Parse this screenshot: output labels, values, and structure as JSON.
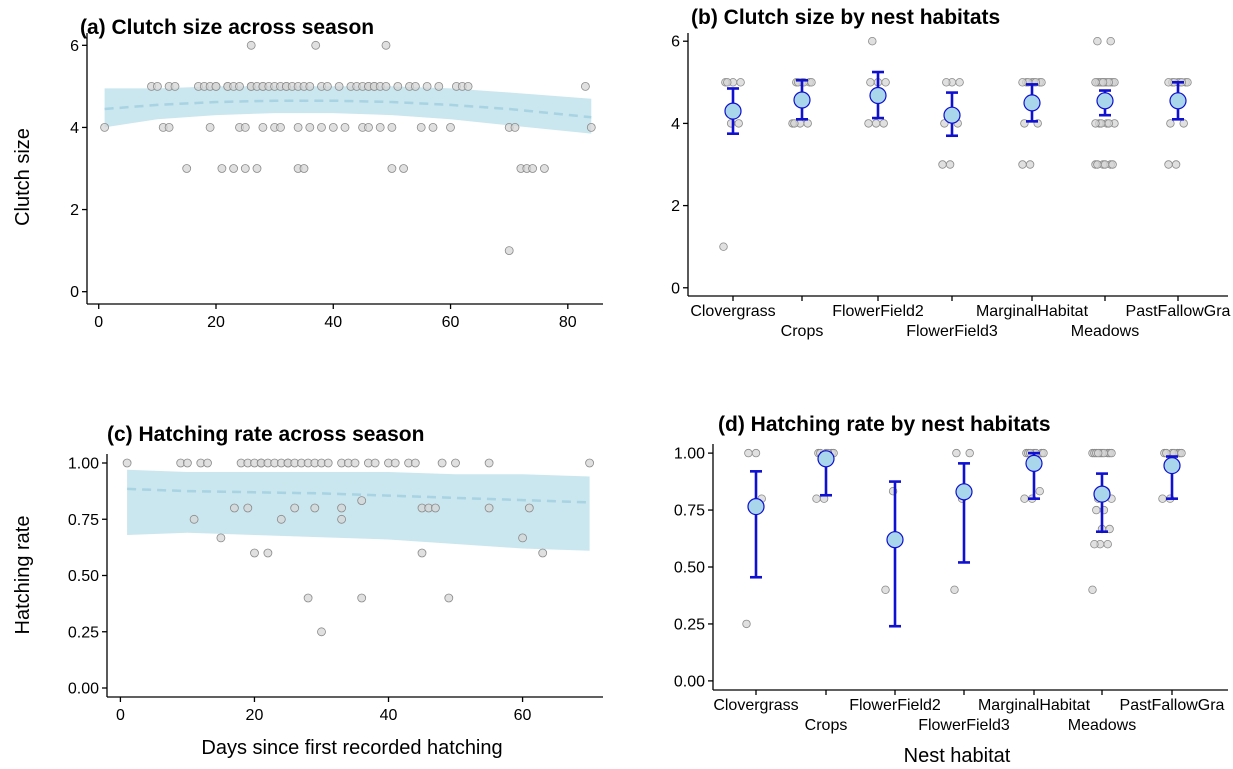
{
  "chart_data": [
    {
      "id": "a",
      "type": "scatter",
      "title": "(a) Clutch size across season",
      "xlabel": "",
      "ylabel": "Clutch size",
      "xlim": [
        -2,
        86
      ],
      "ylim": [
        -0.3,
        6.3
      ],
      "xticks": [
        0,
        20,
        40,
        60,
        80
      ],
      "yticks": [
        0,
        2,
        4,
        6
      ],
      "grid": false,
      "band": {
        "x": [
          1,
          10,
          20,
          30,
          40,
          50,
          60,
          70,
          84
        ],
        "lower": [
          4.0,
          4.2,
          4.3,
          4.35,
          4.35,
          4.3,
          4.2,
          4.05,
          3.85
        ],
        "upper": [
          4.95,
          4.95,
          5.0,
          5.0,
          5.0,
          5.0,
          4.95,
          4.85,
          4.7
        ],
        "fit": [
          4.45,
          4.55,
          4.62,
          4.65,
          4.65,
          4.62,
          4.55,
          4.45,
          4.25
        ]
      },
      "points": {
        "x": [
          1,
          9,
          10,
          11,
          12,
          12,
          13,
          15,
          17,
          18,
          19,
          19,
          20,
          20,
          21,
          22,
          22,
          23,
          23,
          24,
          24,
          25,
          25,
          26,
          26,
          26,
          27,
          27,
          28,
          28,
          28,
          29,
          30,
          30,
          31,
          31,
          32,
          32,
          33,
          34,
          34,
          34,
          35,
          35,
          36,
          36,
          37,
          38,
          38,
          39,
          40,
          41,
          42,
          43,
          44,
          45,
          45,
          46,
          46,
          46,
          47,
          47,
          48,
          48,
          49,
          49,
          50,
          50,
          51,
          52,
          53,
          54,
          55,
          56,
          57,
          58,
          60,
          61,
          62,
          63,
          70,
          70,
          71,
          72,
          73,
          74,
          76,
          83,
          84
        ],
        "y": [
          4,
          5,
          5,
          4,
          4,
          5,
          5,
          3,
          5,
          5,
          4,
          5,
          5,
          5,
          3,
          5,
          5,
          5,
          3,
          5,
          4,
          3,
          4,
          5,
          5,
          6,
          5,
          3,
          4,
          5,
          5,
          5,
          5,
          4,
          4,
          5,
          5,
          5,
          5,
          5,
          4,
          3,
          5,
          3,
          5,
          4,
          6,
          5,
          4,
          5,
          4,
          5,
          4,
          5,
          5,
          4,
          5,
          5,
          5,
          4,
          5,
          5,
          5,
          4,
          6,
          5,
          4,
          3,
          5,
          3,
          5,
          5,
          4,
          5,
          4,
          5,
          4,
          5,
          5,
          5,
          1,
          4,
          4,
          3,
          3,
          3,
          3,
          5,
          4
        ]
      }
    },
    {
      "id": "b",
      "type": "scatter",
      "title": "(b) Clutch size by nest habitats",
      "xlabel": "",
      "ylabel": "",
      "ylim": [
        -0.2,
        6.2
      ],
      "yticks": [
        0,
        2,
        4,
        6
      ],
      "grid": false,
      "categories": [
        "Clovergrass",
        "Crops",
        "FlowerField2",
        "FlowerField3",
        "MarginalHabitat",
        "Meadows",
        "PastFallowGra"
      ],
      "means": [
        4.3,
        4.57,
        4.68,
        4.2,
        4.5,
        4.55,
        4.55
      ],
      "lower": [
        3.75,
        4.1,
        4.13,
        3.7,
        4.05,
        4.2,
        4.1
      ],
      "upper": [
        4.85,
        5.05,
        5.25,
        4.75,
        4.95,
        4.8,
        5.0
      ],
      "points": [
        [
          1,
          4,
          4,
          5,
          5,
          5,
          5
        ],
        [
          4,
          4,
          4,
          4,
          5,
          5,
          5,
          5,
          5,
          5
        ],
        [
          4,
          4,
          4,
          5,
          5,
          5,
          6
        ],
        [
          3,
          3,
          4,
          4,
          5,
          5,
          5
        ],
        [
          3,
          3,
          4,
          4,
          5,
          5,
          5,
          5,
          5,
          5,
          5,
          5
        ],
        [
          3,
          3,
          3,
          3,
          3,
          3,
          4,
          4,
          4,
          4,
          4,
          4,
          5,
          5,
          5,
          5,
          5,
          5,
          5,
          5,
          5,
          5,
          5,
          5,
          6,
          6
        ],
        [
          3,
          3,
          4,
          4,
          5,
          5,
          5,
          5,
          5,
          5,
          5,
          5
        ]
      ]
    },
    {
      "id": "c",
      "type": "scatter",
      "title": "(c) Hatching rate across season",
      "xlabel": "Days since first recorded hatching",
      "ylabel": "Hatching rate",
      "xlim": [
        -2,
        72
      ],
      "ylim": [
        -0.04,
        1.04
      ],
      "xticks": [
        0,
        20,
        40,
        60
      ],
      "yticks": [
        0.0,
        0.25,
        0.5,
        0.75,
        1.0
      ],
      "yticklabels": [
        "0.00",
        "0.25",
        "0.50",
        "0.75",
        "1.00"
      ],
      "grid": false,
      "band": {
        "x": [
          1,
          10,
          20,
          30,
          40,
          50,
          60,
          70
        ],
        "lower": [
          0.68,
          0.69,
          0.68,
          0.67,
          0.66,
          0.64,
          0.62,
          0.61
        ],
        "upper": [
          0.97,
          0.96,
          0.96,
          0.96,
          0.96,
          0.95,
          0.95,
          0.94
        ],
        "fit": [
          0.885,
          0.875,
          0.87,
          0.865,
          0.855,
          0.845,
          0.835,
          0.825
        ]
      },
      "points": {
        "x": [
          1,
          9,
          10,
          11,
          12,
          13,
          15,
          17,
          18,
          19,
          19,
          20,
          20,
          21,
          21,
          22,
          22,
          23,
          24,
          24,
          25,
          25,
          26,
          26,
          27,
          28,
          28,
          29,
          29,
          30,
          30,
          31,
          33,
          33,
          33,
          34,
          35,
          36,
          36,
          37,
          38,
          40,
          41,
          43,
          44,
          45,
          45,
          46,
          47,
          48,
          49,
          50,
          55,
          55,
          60,
          61,
          63,
          70
        ],
        "y": [
          1,
          1,
          1,
          0.75,
          1,
          1,
          0.667,
          0.8,
          1,
          0.8,
          1,
          0.6,
          1,
          1,
          1,
          0.6,
          1,
          1,
          0.75,
          1,
          1,
          1,
          0.8,
          1,
          1,
          0.4,
          1,
          0.8,
          1,
          0.25,
          1,
          1,
          0.75,
          0.8,
          1,
          1,
          1,
          0.4,
          0.833,
          1,
          1,
          1,
          1,
          1,
          1,
          0.6,
          0.8,
          0.8,
          0.8,
          1,
          0.4,
          1,
          1,
          0.8,
          0.667,
          0.8,
          0.6,
          1
        ]
      }
    },
    {
      "id": "d",
      "type": "scatter",
      "title": "(d) Hatching rate by nest habitats",
      "xlabel": "Nest habitat",
      "ylabel": "",
      "ylim": [
        -0.04,
        1.04
      ],
      "yticks": [
        0.0,
        0.25,
        0.5,
        0.75,
        1.0
      ],
      "yticklabels": [
        "0.00",
        "0.25",
        "0.50",
        "0.75",
        "1.00"
      ],
      "grid": false,
      "categories": [
        "Clovergrass",
        "Crops",
        "FlowerField2",
        "FlowerField3",
        "MarginalHabitat",
        "Meadows",
        "PastFallowGra"
      ],
      "means": [
        0.765,
        0.975,
        0.62,
        0.83,
        0.955,
        0.82,
        0.945
      ],
      "lower": [
        0.455,
        0.815,
        0.24,
        0.52,
        0.8,
        0.655,
        0.8
      ],
      "upper": [
        0.92,
        1.0,
        0.875,
        0.955,
        1.0,
        0.91,
        0.985
      ],
      "points": [
        [
          0.25,
          0.75,
          0.8,
          1,
          1
        ],
        [
          0.8,
          0.8,
          1,
          1,
          1,
          1,
          1,
          1
        ],
        [
          0.4,
          0.833
        ],
        [
          0.4,
          0.8,
          1,
          1
        ],
        [
          0.8,
          0.8,
          0.833,
          1,
          1,
          1,
          1,
          1,
          1,
          1
        ],
        [
          0.4,
          0.6,
          0.6,
          0.6,
          0.667,
          0.667,
          0.75,
          0.75,
          0.8,
          0.8,
          0.833,
          1,
          1,
          1,
          1,
          1,
          1,
          1,
          1,
          1,
          1
        ],
        [
          0.8,
          0.8,
          1,
          1,
          1,
          1,
          1,
          1,
          1
        ]
      ]
    }
  ]
}
